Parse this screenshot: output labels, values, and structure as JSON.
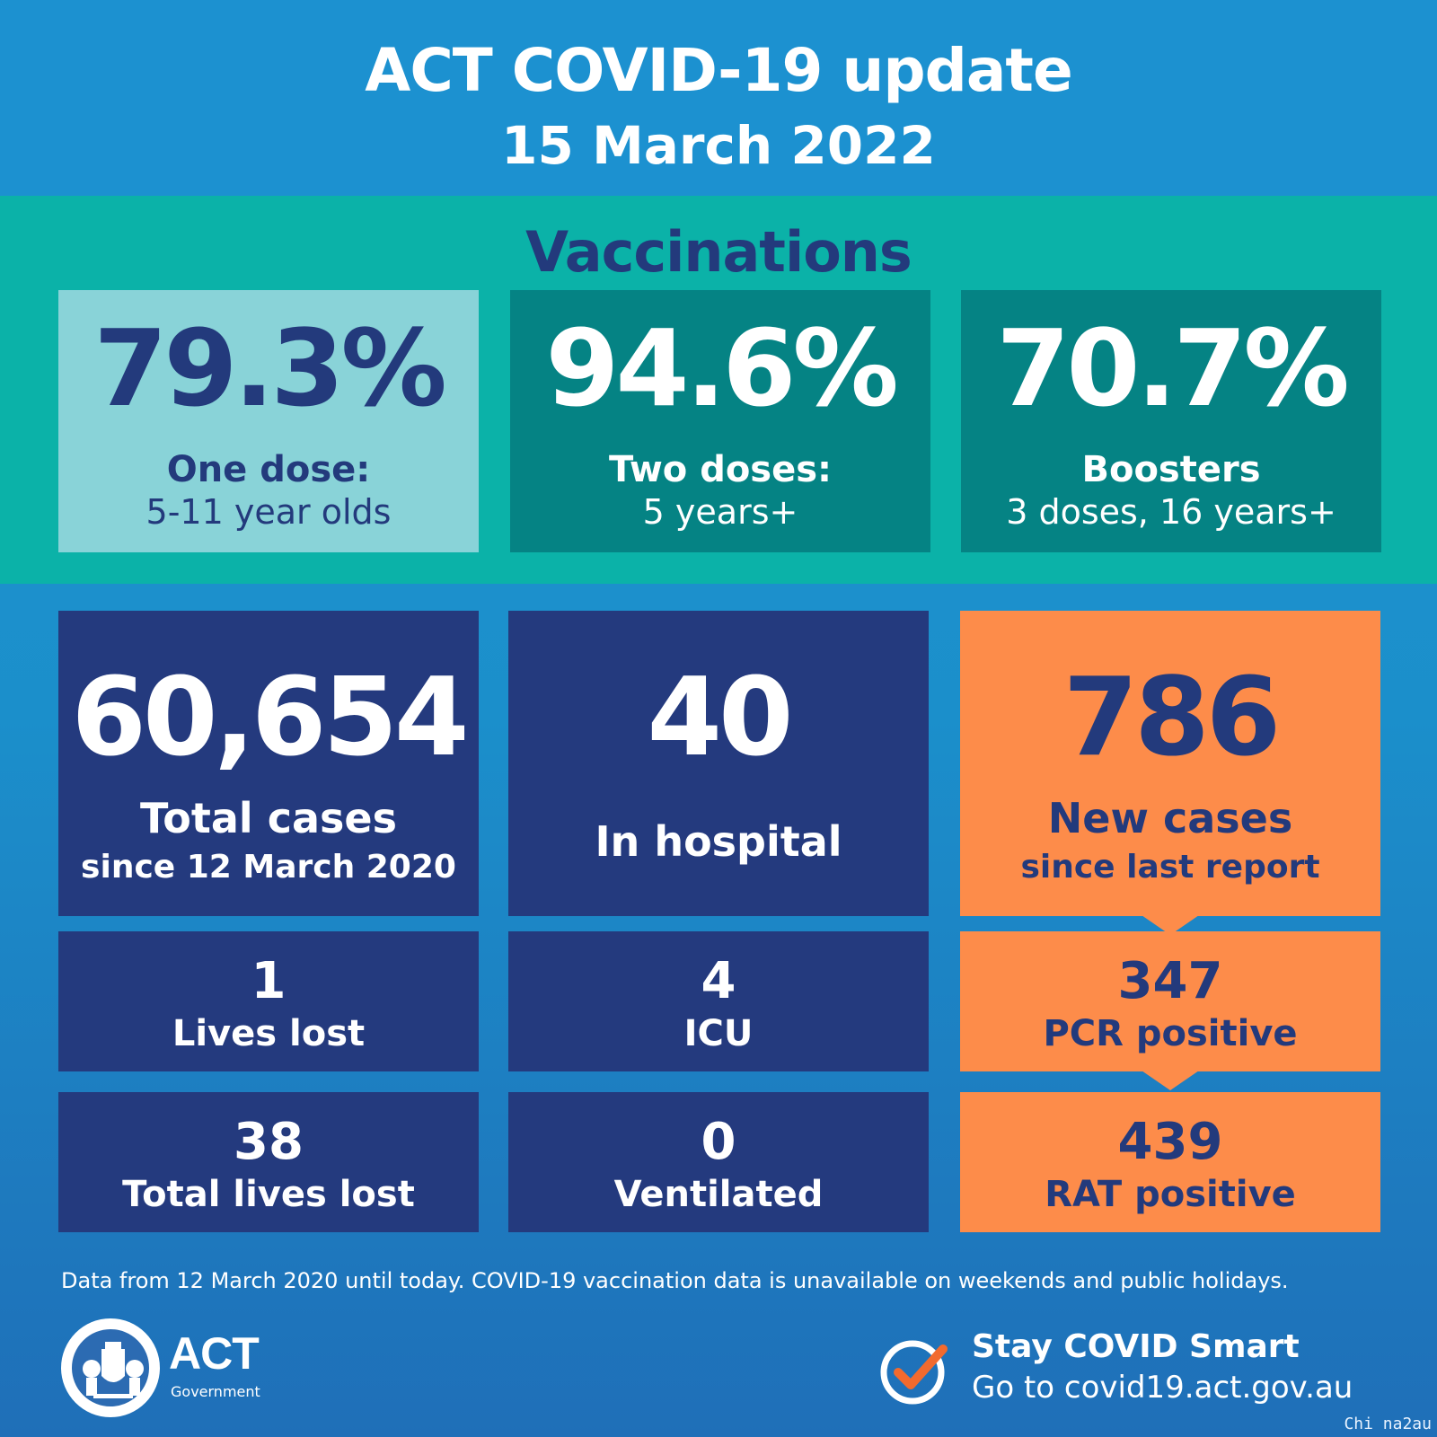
{
  "header": {
    "title": "ACT COVID-19 update",
    "date": "15 March 2022"
  },
  "vaccinations": {
    "heading": "Vaccinations",
    "items": [
      {
        "value": "79.3%",
        "line1": "One dose:",
        "line2": "5-11 year olds"
      },
      {
        "value": "94.6%",
        "line1": "Two doses:",
        "line2": "5 years+"
      },
      {
        "value": "70.7%",
        "line1": "Boosters",
        "line2": "3 doses, 16 years+"
      }
    ]
  },
  "cases": {
    "total": {
      "value": "60,654",
      "line1": "Total cases",
      "line2": "since 12 March 2020"
    },
    "hospital": {
      "value": "40",
      "label": "In hospital"
    },
    "new": {
      "value": "786",
      "line1": "New cases",
      "line2": "since last report"
    }
  },
  "rows": {
    "lives_lost": {
      "value": "1",
      "label": "Lives lost"
    },
    "icu": {
      "value": "4",
      "label": "ICU"
    },
    "pcr": {
      "value": "347",
      "label": "PCR positive"
    },
    "total_lives_lost": {
      "value": "38",
      "label": "Total lives lost"
    },
    "ventilated": {
      "value": "0",
      "label": "Ventilated"
    },
    "rat": {
      "value": "439",
      "label": "RAT positive"
    }
  },
  "footnote": "Data from 12 March 2020 until today.  COVID-19 vaccination data is unavailable on weekends and public holidays.",
  "logo": {
    "word": "ACT",
    "sub": "Government"
  },
  "stay_smart": {
    "line1": "Stay COVID Smart",
    "line2": "Go to covid19.act.gov.au"
  },
  "credit": "Chi na2au",
  "colors": {
    "header_blue": "#1c91d0",
    "teal": "#0bb2a8",
    "light_teal": "#89d3d8",
    "dark_teal": "#058384",
    "navy": "#243a7e",
    "orange": "#fd8c4a",
    "check_orange": "#f26a2e"
  }
}
